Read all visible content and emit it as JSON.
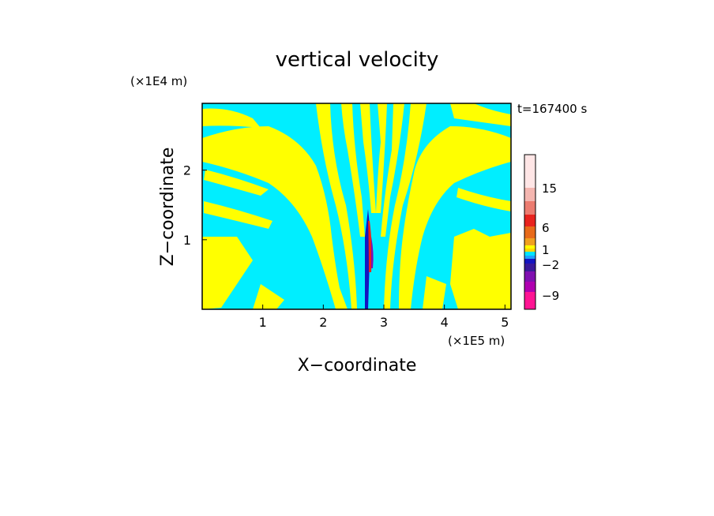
{
  "chart_data": {
    "type": "heatmap",
    "title": "vertical velocity",
    "xlabel": "X−coordinate",
    "ylabel": "Z−coordinate",
    "x_unit": "(×1E5 m)",
    "y_unit": "(×1E4 m)",
    "time_label": "t=167400 s",
    "xlim": [
      0,
      5.1
    ],
    "ylim": [
      0,
      2.96
    ],
    "x_ticks": [
      "1",
      "2",
      "3",
      "4",
      "5"
    ],
    "y_ticks": [
      "1",
      "2"
    ],
    "x_tick_values": [
      1,
      2,
      3,
      4,
      5
    ],
    "y_tick_values": [
      1,
      2
    ],
    "colorbar": {
      "tick_labels": [
        "15",
        "6",
        "1",
        "−2",
        "−9"
      ],
      "colors_top_to_bottom": [
        "#ffe6e6",
        "#f4b6b0",
        "#ec7c70",
        "#e8231e",
        "#e86a1a",
        "#f0a020",
        "#ffff00",
        "#ffd700",
        "#00e5ff",
        "#1fa0ff",
        "#1515c0",
        "#3a1a9a",
        "#8010b0",
        "#b000b0",
        "#ff1493"
      ]
    },
    "field_colors": {
      "positive": "#ffff00",
      "negative": "#00eeff"
    }
  }
}
